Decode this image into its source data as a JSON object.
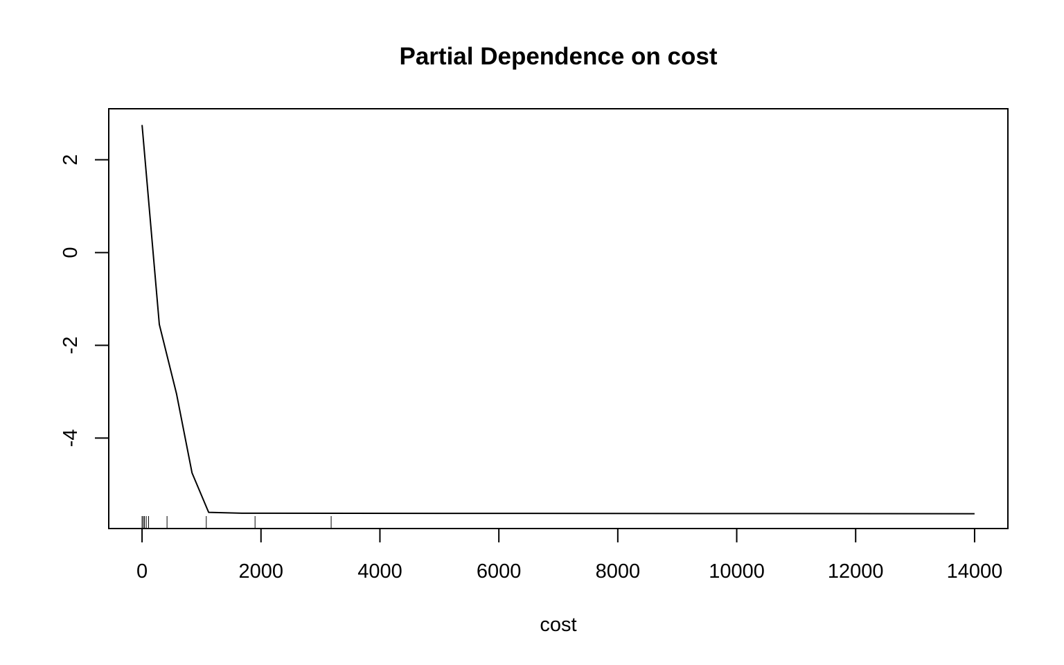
{
  "chart_data": {
    "type": "line",
    "title": "Partial Dependence on cost",
    "xlabel": "cost",
    "ylabel": "",
    "xlim": [
      -560,
      14560
    ],
    "ylim": [
      -5.95,
      3.1
    ],
    "x_ticks": [
      0,
      2000,
      4000,
      6000,
      8000,
      10000,
      12000,
      14000
    ],
    "x_tick_labels": [
      "0",
      "2000",
      "4000",
      "6000",
      "8000",
      "10000",
      "12000",
      "14000"
    ],
    "y_ticks": [
      2,
      0,
      -2,
      -4
    ],
    "y_tick_labels": [
      "2",
      "0",
      "-2",
      "-4"
    ],
    "series": [
      {
        "color": "#000000",
        "x": [
          0,
          290,
          580,
          840,
          1120,
          1680,
          14000
        ],
        "y": [
          2.75,
          -1.55,
          -3.05,
          -4.75,
          -5.6,
          -5.62,
          -5.63
        ]
      }
    ],
    "rug_x": [
      0,
      20,
      40,
      70,
      110,
      420,
      1080,
      1900,
      3180
    ],
    "grid": false,
    "legend": "none"
  }
}
